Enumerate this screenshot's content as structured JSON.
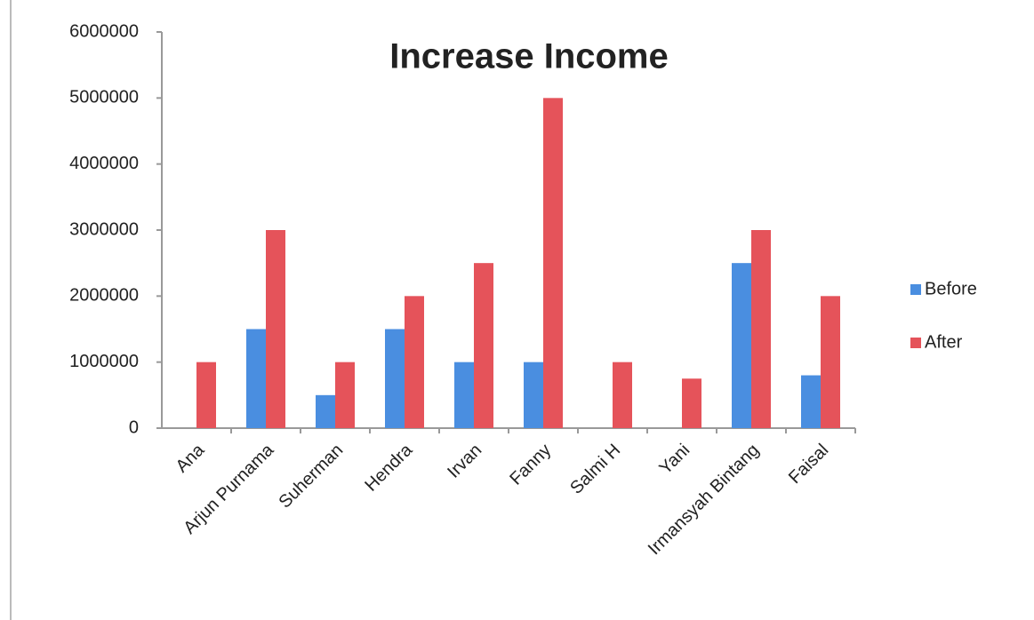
{
  "chart_data": {
    "type": "bar",
    "title": "Increase Income",
    "categories": [
      "Ana",
      "Arjun Purnama",
      "Suherman",
      "Hendra",
      "Irvan",
      "Fanny",
      "Salmi H",
      "Yani",
      "Irmansyah Bintang",
      "Faisal"
    ],
    "series": [
      {
        "name": "Before",
        "color": "#4a8ee0",
        "values": [
          0,
          1500000,
          500000,
          1500000,
          1000000,
          1000000,
          0,
          0,
          2500000,
          800000
        ]
      },
      {
        "name": "After",
        "color": "#e5535a",
        "values": [
          1000000,
          3000000,
          1000000,
          2000000,
          2500000,
          5000000,
          1000000,
          750000,
          3000000,
          2000000
        ]
      }
    ],
    "ylim": [
      0,
      6000000
    ],
    "yticks": [
      0,
      1000000,
      2000000,
      3000000,
      4000000,
      5000000,
      6000000
    ],
    "grid": false,
    "legend": "right"
  }
}
